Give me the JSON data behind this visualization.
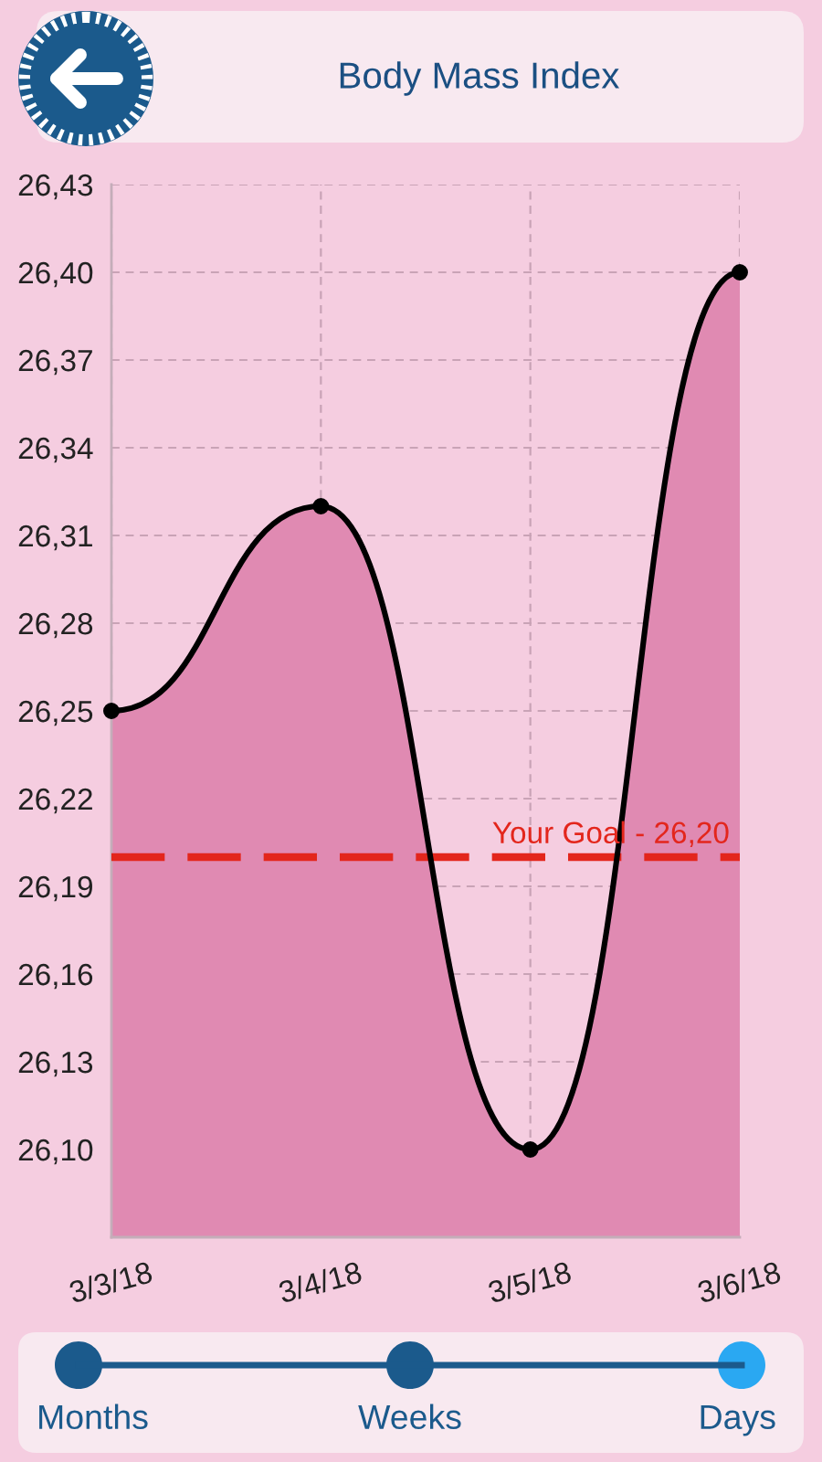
{
  "chart_data": {
    "type": "area",
    "title": "Body Mass Index",
    "categories": [
      "3/3/18",
      "3/4/18",
      "3/5/18",
      "3/6/18"
    ],
    "values": [
      26.25,
      26.32,
      26.1,
      26.4
    ],
    "color": "#e08ab2",
    "marker": "circle",
    "grid": true,
    "ylim": [
      26.07,
      26.43
    ],
    "yticks": [
      {
        "value": 26.1,
        "label": "26,10"
      },
      {
        "value": 26.13,
        "label": "26,13"
      },
      {
        "value": 26.16,
        "label": "26,16"
      },
      {
        "value": 26.19,
        "label": "26,19"
      },
      {
        "value": 26.22,
        "label": "26,22"
      },
      {
        "value": 26.25,
        "label": "26,25"
      },
      {
        "value": 26.28,
        "label": "26,28"
      },
      {
        "value": 26.31,
        "label": "26,31"
      },
      {
        "value": 26.34,
        "label": "26,34"
      },
      {
        "value": 26.37,
        "label": "26,37"
      },
      {
        "value": 26.4,
        "label": "26,40"
      },
      {
        "value": 26.43,
        "label": "26,43"
      }
    ],
    "ref_lines": [
      {
        "axis": "y",
        "value": 26.2,
        "label": "Your Goal - 26,20",
        "color": "#e3261c",
        "line_style": "dashed"
      }
    ],
    "annotations": [
      "Months",
      "Weeks",
      "Days"
    ]
  }
}
